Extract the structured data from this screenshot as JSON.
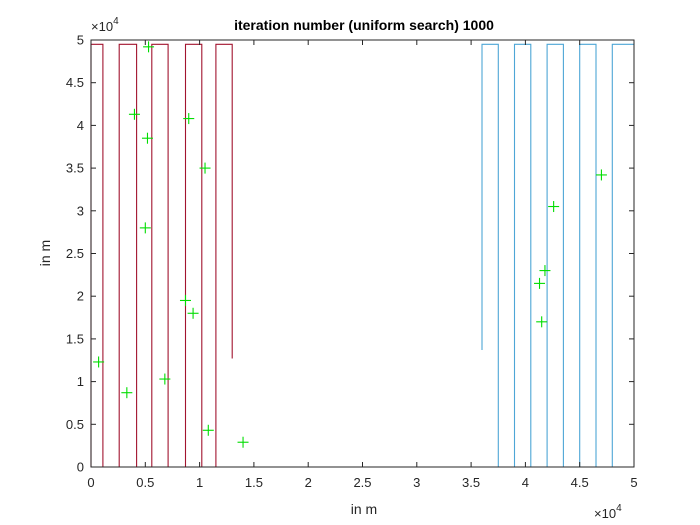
{
  "chart_data": {
    "type": "line",
    "title": "iteration number (uniform search) 1000",
    "xlabel": "in m",
    "ylabel": "in m",
    "xlim": [
      0,
      50000
    ],
    "ylim": [
      0,
      50000
    ],
    "x_multiplier_label": {
      "base": "×10",
      "exp": "4"
    },
    "y_multiplier_label": {
      "base": "×10",
      "exp": "4"
    },
    "xticks": [
      0,
      5000,
      10000,
      15000,
      20000,
      25000,
      30000,
      35000,
      40000,
      45000,
      50000
    ],
    "xtick_labels": [
      "0",
      "0.5",
      "1",
      "1.5",
      "2",
      "2.5",
      "3",
      "3.5",
      "4",
      "4.5",
      "5"
    ],
    "yticks": [
      0,
      5000,
      10000,
      15000,
      20000,
      25000,
      30000,
      35000,
      40000,
      45000,
      50000
    ],
    "ytick_labels": [
      "0",
      "0.5",
      "1",
      "1.5",
      "2",
      "2.5",
      "3",
      "3.5",
      "4",
      "4.5",
      "5"
    ],
    "grid": false,
    "colors": {
      "red_path": "#a2142f",
      "blue_path": "#4da6d6",
      "markers": "#00dd00",
      "axes": "#262626"
    },
    "series": [
      {
        "color": "#a2142f",
        "kind": "path",
        "x": [
          0,
          0,
          1100,
          1100,
          2600,
          2600,
          4200,
          4200,
          5600,
          5600,
          7100,
          7100,
          8700,
          8700,
          10200,
          10200,
          11500,
          11500,
          13000,
          13000
        ],
        "y": [
          0,
          49500,
          49500,
          0,
          0,
          49500,
          49500,
          0,
          0,
          49500,
          49500,
          0,
          0,
          49500,
          49500,
          0,
          0,
          49500,
          49500,
          12700
        ]
      },
      {
        "color": "#4da6d6",
        "kind": "path",
        "x": [
          36000,
          36000,
          37500,
          37500,
          39000,
          39000,
          40500,
          40500,
          42000,
          42000,
          43500,
          43500,
          45000,
          45000,
          46500,
          46500,
          48000,
          48000,
          50000
        ],
        "y": [
          13700,
          49500,
          49500,
          0,
          0,
          49500,
          49500,
          0,
          0,
          49500,
          49500,
          0,
          0,
          49500,
          49500,
          0,
          0,
          49500,
          49500
        ]
      },
      {
        "color": "#00dd00",
        "kind": "markers",
        "marker": "+",
        "x": [
          700,
          3300,
          4000,
          5000,
          5200,
          5300,
          6800,
          8700,
          9000,
          9400,
          10500,
          10800,
          14000,
          41300,
          41500,
          41800,
          42600,
          47000
        ],
        "y": [
          12300,
          8700,
          41300,
          28000,
          38500,
          49200,
          10300,
          19500,
          40800,
          18000,
          35000,
          4300,
          2900,
          21500,
          17000,
          23000,
          30500,
          34200
        ]
      }
    ]
  }
}
